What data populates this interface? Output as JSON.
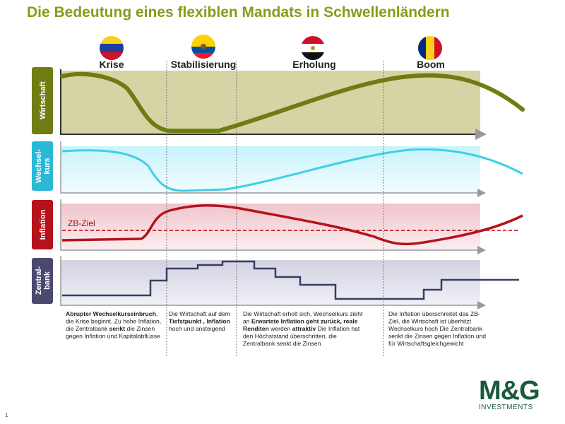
{
  "title": "Die Bedeutung eines flexiblen Mandats in Schwellenländern",
  "phases": [
    {
      "label": "Krise",
      "description": [
        [
          {
            "text": "Abrupter Wechselkurseinbruch",
            "bold": true
          },
          {
            "text": ",",
            "bold": false
          }
        ],
        [
          {
            "text": "die Krise beginnt. Zu hohe Inflation,",
            "bold": false
          }
        ],
        [
          {
            "text": "die Zentralbank ",
            "bold": false
          },
          {
            "text": "senkt",
            "bold": true
          },
          {
            "text": " die Zinsen",
            "bold": false
          }
        ],
        [
          {
            "text": "gegen Inflation und Kapitalabflüsse",
            "bold": false
          }
        ]
      ]
    },
    {
      "label": "Stabilisierung",
      "description": [
        [
          {
            "text": "Die Wirtschaft auf dem",
            "bold": false
          }
        ],
        [
          {
            "text": "Tiefstpunkt , Inflation",
            "bold": true
          }
        ],
        [
          {
            "text": "hoch und ansteigend",
            "bold": false
          }
        ]
      ]
    },
    {
      "label": "Erholung",
      "description": [
        [
          {
            "text": "Die Wirtschaft erholt sich, Wechselkurs zieht",
            "bold": false
          }
        ],
        [
          {
            "text": "an ",
            "bold": false
          },
          {
            "text": "Erwartete Inflation geht zurück, reale",
            "bold": true
          }
        ],
        [
          {
            "text": "Renditen",
            "bold": true
          },
          {
            "text": " werden ",
            "bold": false
          },
          {
            "text": "attraktiv",
            "bold": true
          },
          {
            "text": " Die Inflation hat",
            "bold": false
          }
        ],
        [
          {
            "text": "den Höchststand überschritten, die",
            "bold": false
          }
        ],
        [
          {
            "text": "Zentralbank senkt die Zinsen",
            "bold": false
          }
        ]
      ]
    },
    {
      "label": "Boom",
      "description": [
        [
          {
            "text": "Die Inflation überschreitet das ZB-",
            "bold": false
          }
        ],
        [
          {
            "text": "Ziel, die Wirtschaft ist überhitzt",
            "bold": false
          }
        ],
        [
          {
            "text": "Wechselkurs hoch Die Zentralbank",
            "bold": false
          }
        ],
        [
          {
            "text": "senkt die Zinsen gegen Inflation und",
            "bold": false
          }
        ],
        [
          {
            "text": "für Wirtschaftsgleichgewicht",
            "bold": false
          }
        ]
      ]
    }
  ],
  "panels": [
    {
      "label": [
        "Wirtschaft"
      ]
    },
    {
      "label": [
        "Wechsel-",
        "kurs"
      ]
    },
    {
      "label": [
        "Inflation"
      ]
    },
    {
      "label": [
        "Zentral-",
        "bank"
      ]
    }
  ],
  "target_label": "ZB-Ziel",
  "logo": {
    "brand": "M&G",
    "sub": "INVESTMENTS"
  },
  "page_number": "1"
}
